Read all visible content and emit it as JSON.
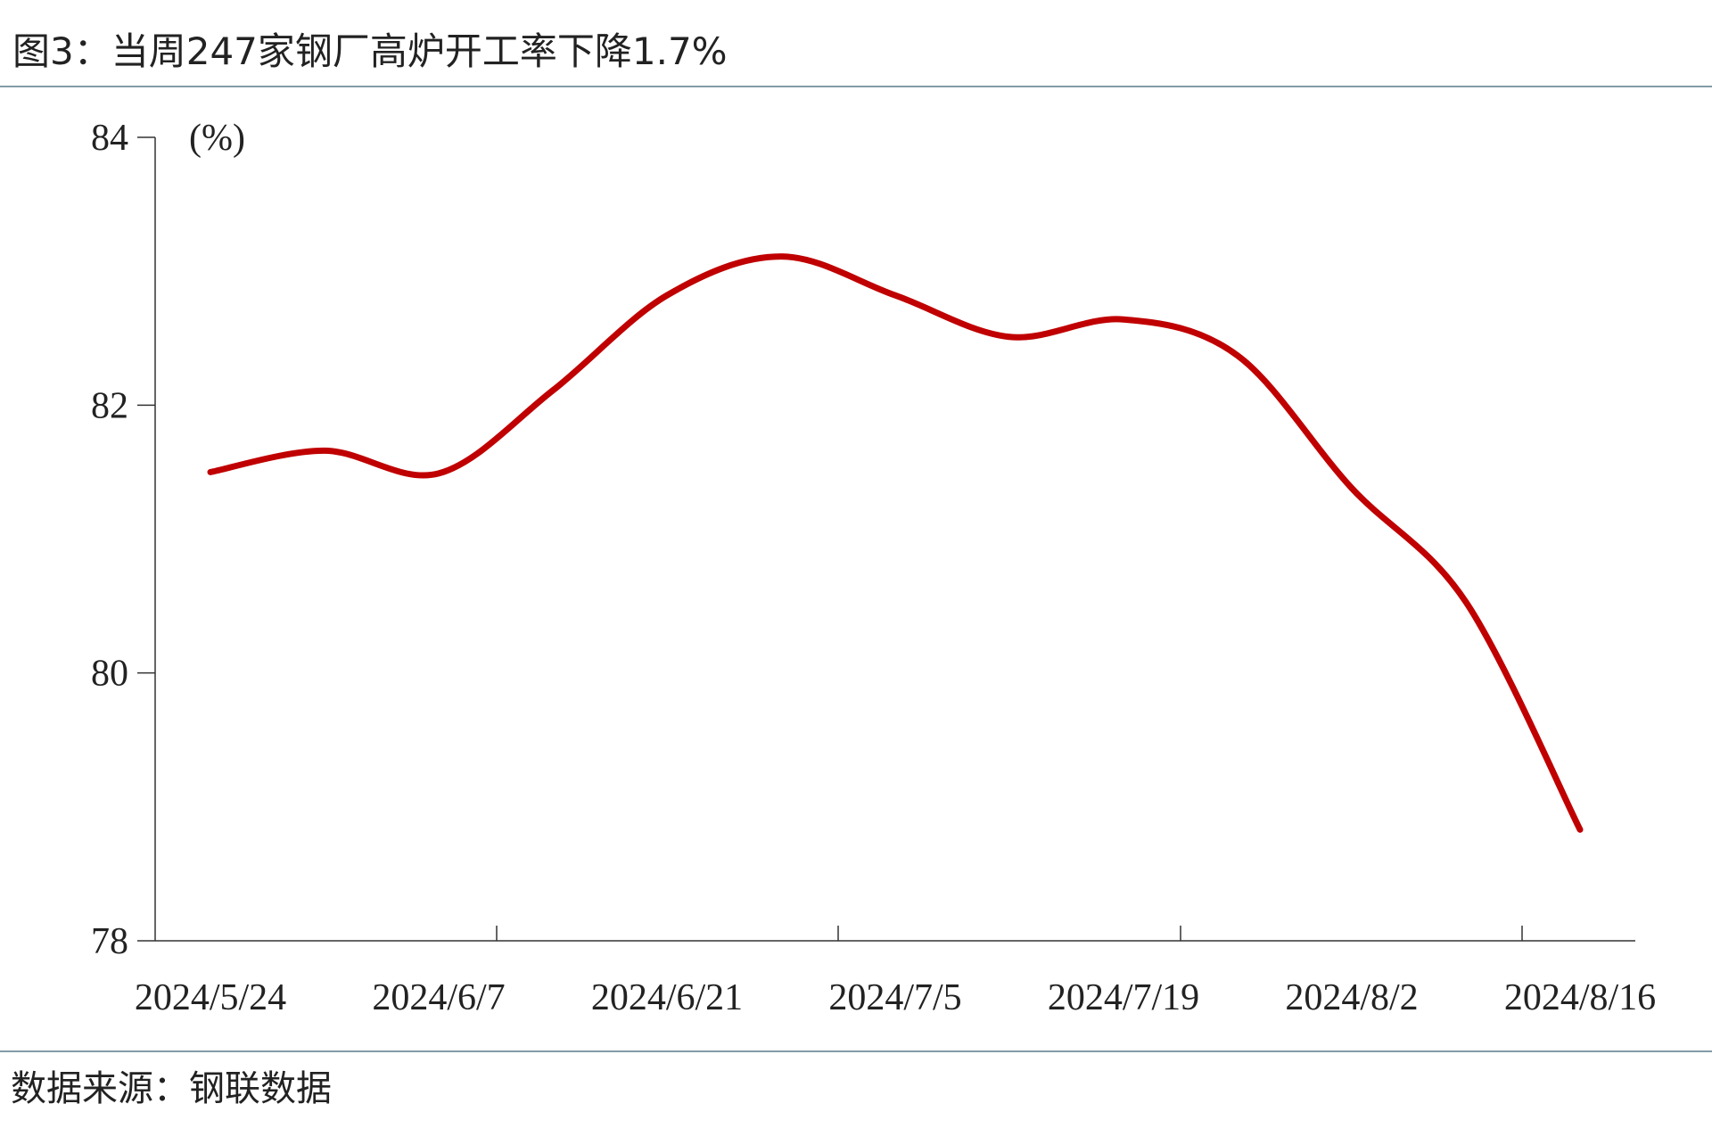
{
  "chart_data": {
    "type": "line",
    "title": "图3：当周247家钢厂高炉开工率下降1.7%",
    "y_label": "(%)",
    "source": "数据来源：钢联数据",
    "categories": [
      "2024/5/24",
      null,
      "2024/6/7",
      null,
      "2024/6/21",
      null,
      "2024/7/5",
      null,
      "2024/7/19",
      null,
      "2024/8/2",
      null,
      "2024/8/16"
    ],
    "series": [
      {
        "name": "247家钢厂高炉开工率",
        "color": "#c00000",
        "values": [
          81.5,
          81.66,
          81.49,
          82.11,
          82.82,
          83.11,
          82.82,
          82.51,
          82.64,
          82.37,
          81.38,
          80.53,
          78.83
        ]
      }
    ],
    "ylim": [
      78,
      84
    ],
    "yticks": [
      78,
      80,
      82,
      84
    ],
    "grid": false
  }
}
